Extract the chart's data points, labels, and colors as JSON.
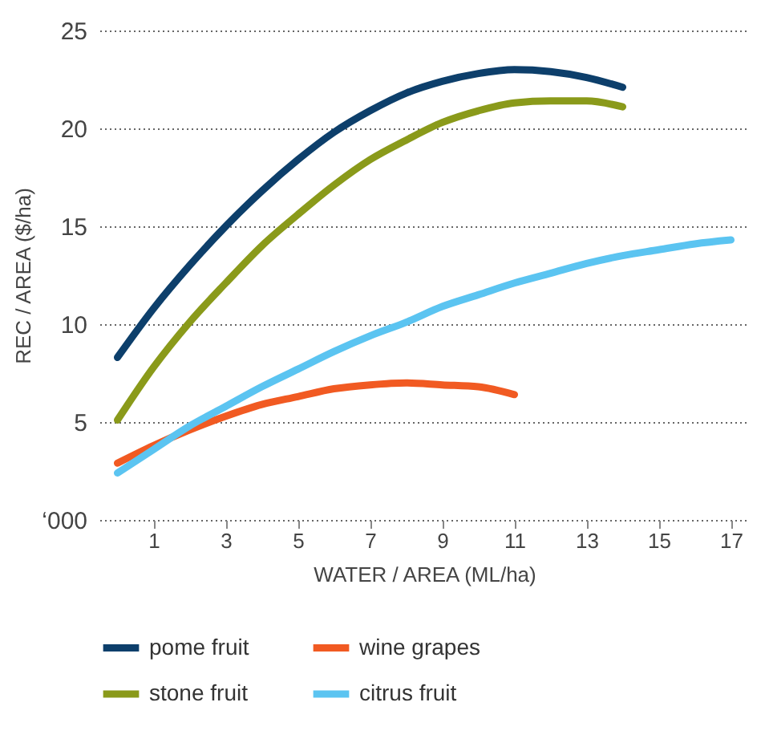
{
  "chart_data": {
    "type": "line",
    "xlabel": "WATER / AREA (ML/ha)",
    "ylabel": "REC / AREA ($/ha)",
    "xlim": [
      -0.5,
      17.5
    ],
    "xticks": [
      1,
      3,
      5,
      7,
      9,
      11,
      13,
      15,
      17
    ],
    "ylim": [
      0,
      25
    ],
    "yticks": [
      {
        "value": 0,
        "label": "‘000"
      },
      5,
      10,
      15,
      20,
      25
    ],
    "grid": "y",
    "legend": "bottom",
    "marker": "none",
    "line_style": "solid",
    "series": [
      {
        "name": "pome fruit",
        "color": "#0d3f6b",
        "x": [
          0,
          1,
          2,
          3,
          4,
          5,
          6,
          7,
          8,
          9,
          10,
          11,
          12,
          13,
          14
        ],
        "values": [
          8.3,
          10.8,
          13,
          15,
          16.8,
          18.4,
          19.8,
          20.9,
          21.8,
          22.4,
          22.8,
          23,
          22.9,
          22.6,
          22.1
        ]
      },
      {
        "name": "wine grapes",
        "color": "#f15a22",
        "x": [
          0,
          1,
          2,
          3,
          4,
          5,
          6,
          7,
          8,
          9,
          10,
          11
        ],
        "values": [
          2.9,
          3.8,
          4.6,
          5.3,
          5.9,
          6.3,
          6.7,
          6.9,
          7.0,
          6.9,
          6.8,
          6.4
        ]
      },
      {
        "name": "stone fruit",
        "color": "#8a9a1a",
        "x": [
          0,
          1,
          2,
          3,
          4,
          5,
          6,
          7,
          8,
          9,
          10,
          11,
          12,
          13,
          14
        ],
        "values": [
          5.1,
          7.8,
          10.1,
          12.1,
          14,
          15.6,
          17.1,
          18.4,
          19.4,
          20.3,
          20.9,
          21.3,
          21.4,
          21.4,
          21.1
        ]
      },
      {
        "name": "citrus fruit",
        "color": "#5bc4f1",
        "x": [
          0,
          1,
          2,
          3,
          4,
          5,
          6,
          7,
          8,
          9,
          10,
          11,
          12,
          13,
          14,
          15,
          16,
          17
        ],
        "values": [
          2.4,
          3.6,
          4.8,
          5.8,
          6.8,
          7.7,
          8.6,
          9.4,
          10.1,
          10.9,
          11.5,
          12.1,
          12.6,
          13.1,
          13.5,
          13.8,
          14.1,
          14.3
        ]
      }
    ]
  }
}
